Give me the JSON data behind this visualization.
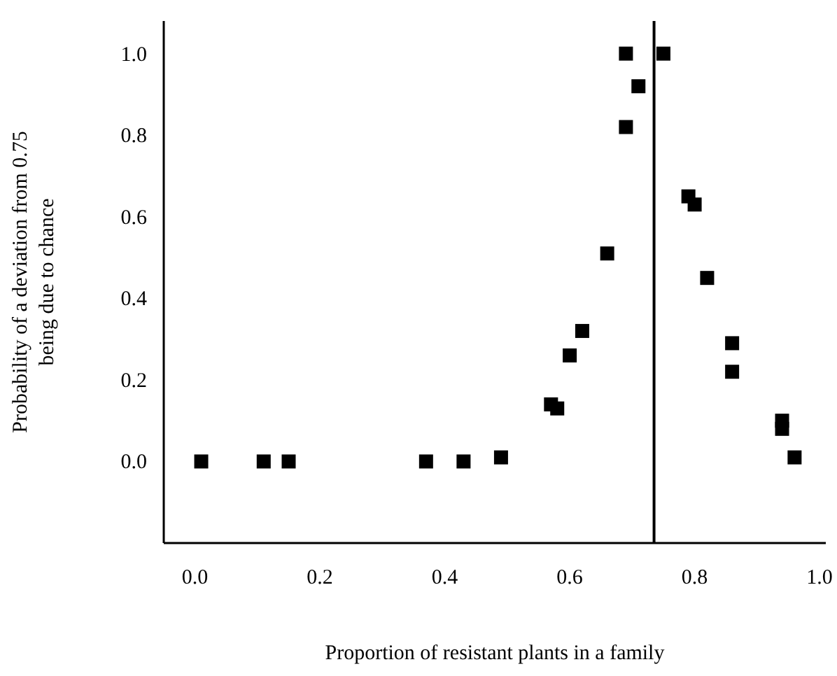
{
  "chart_data": {
    "type": "scatter",
    "xlabel": "Proportion of resistant plants in a family",
    "ylabel": "Probability of a deviation from 0.75\nbeing due to chance",
    "x": [
      0.01,
      0.11,
      0.15,
      0.37,
      0.43,
      0.49,
      0.57,
      0.58,
      0.6,
      0.62,
      0.66,
      0.69,
      0.69,
      0.71,
      0.75,
      0.79,
      0.8,
      0.82,
      0.86,
      0.86,
      0.94,
      0.94,
      0.96
    ],
    "values": [
      0,
      0,
      0,
      0,
      0,
      0.01,
      0.14,
      0.13,
      0.26,
      0.32,
      0.51,
      1.0,
      0.82,
      0.92,
      1.0,
      0.65,
      0.63,
      0.45,
      0.29,
      0.22,
      0.1,
      0.08,
      0.01
    ],
    "color": "#000000",
    "marker": "square",
    "xlim": [
      -0.05,
      1.01
    ],
    "ylim": [
      -0.2,
      1.08
    ],
    "xticks": [
      {
        "value": 0,
        "label": "0.0"
      },
      0.2,
      0.4,
      0.6,
      0.8,
      {
        "value": 1,
        "label": "1.0"
      }
    ],
    "yticks": [
      {
        "value": 0,
        "label": "0.0"
      },
      0.2,
      0.4,
      0.6,
      0.8,
      {
        "value": 1,
        "label": "1.0"
      }
    ],
    "ref_lines": [
      {
        "axis": "x",
        "value": 0.735,
        "color": "#000000"
      }
    ],
    "grid": false
  }
}
